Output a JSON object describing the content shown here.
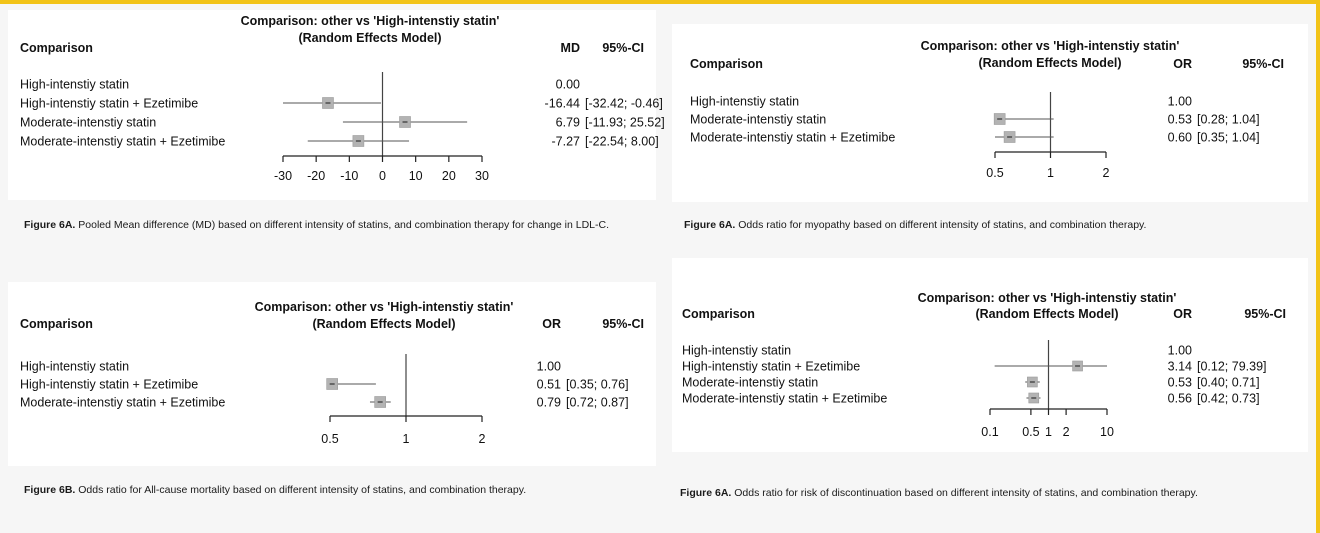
{
  "chart_data": [
    {
      "type": "forest",
      "title": "Comparison: other vs 'High-intenstiy statin'",
      "subtitle": "(Random Effects Model)",
      "label_header": "Comparison",
      "effect_header": "MD",
      "ci_header": "95%-CI",
      "scale": "linear",
      "xlim": [
        -30,
        30
      ],
      "ticks": [
        -30,
        -20,
        -10,
        0,
        10,
        20,
        30
      ],
      "tick_labels": [
        "-30",
        "-20",
        "-10",
        "0",
        "10",
        "20",
        "30"
      ],
      "reference": 0,
      "rows": [
        {
          "label": "High-intenstiy statin",
          "est": 0.0,
          "lo": null,
          "hi": null,
          "est_text": "0.00",
          "ci_text": ""
        },
        {
          "label": "High-intenstiy statin + Ezetimibe",
          "est": -16.44,
          "lo": -32.42,
          "hi": -0.46,
          "est_text": "-16.44",
          "ci_text": "[-32.42; -0.46]"
        },
        {
          "label": "Moderate-intenstiy statin",
          "est": 6.79,
          "lo": -11.93,
          "hi": 25.52,
          "est_text": "6.79",
          "ci_text": "[-11.93; 25.52]"
        },
        {
          "label": "Moderate-intenstiy statin + Ezetimibe",
          "est": -7.27,
          "lo": -22.54,
          "hi": 8.0,
          "est_text": "-7.27",
          "ci_text": "[-22.54;  8.00]"
        }
      ],
      "caption_label": "Figure 6A.",
      "caption_text": " Pooled Mean difference (MD) based on different intensity of statins, and combination therapy for change in LDL-C."
    },
    {
      "type": "forest",
      "title": "Comparison: other vs 'High-intenstiy statin'",
      "subtitle": "(Random Effects Model)",
      "label_header": "Comparison",
      "effect_header": "OR",
      "ci_header": "95%-CI",
      "scale": "log",
      "xlim": [
        0.5,
        2
      ],
      "ticks": [
        0.5,
        1,
        2
      ],
      "tick_labels": [
        "0.5",
        "1",
        "2"
      ],
      "reference": 1,
      "rows": [
        {
          "label": "High-intenstiy statin",
          "est": 1.0,
          "lo": null,
          "hi": null,
          "est_text": "1.00",
          "ci_text": ""
        },
        {
          "label": "Moderate-intenstiy statin",
          "est": 0.53,
          "lo": 0.28,
          "hi": 1.04,
          "est_text": "0.53",
          "ci_text": "[0.28; 1.04]"
        },
        {
          "label": "Moderate-intenstiy statin + Ezetimibe",
          "est": 0.6,
          "lo": 0.35,
          "hi": 1.04,
          "est_text": "0.60",
          "ci_text": "[0.35; 1.04]"
        }
      ],
      "caption_label": "Figure 6A.",
      "caption_text": " Odds ratio for myopathy based on different intensity of statins, and combination therapy."
    },
    {
      "type": "forest",
      "title": "Comparison: other vs 'High-intenstiy statin'",
      "subtitle": "(Random Effects Model)",
      "label_header": "Comparison",
      "effect_header": "OR",
      "ci_header": "95%-CI",
      "scale": "log",
      "xlim": [
        0.5,
        2
      ],
      "ticks": [
        0.5,
        1,
        2
      ],
      "tick_labels": [
        "0.5",
        "1",
        "2"
      ],
      "reference": 1,
      "rows": [
        {
          "label": "High-intenstiy statin",
          "est": 1.0,
          "lo": null,
          "hi": null,
          "est_text": "1.00",
          "ci_text": ""
        },
        {
          "label": "High-intenstiy statin + Ezetimibe",
          "est": 0.51,
          "lo": 0.35,
          "hi": 0.76,
          "est_text": "0.51",
          "ci_text": "[0.35; 0.76]"
        },
        {
          "label": "Moderate-intenstiy statin + Ezetimibe",
          "est": 0.79,
          "lo": 0.72,
          "hi": 0.87,
          "est_text": "0.79",
          "ci_text": "[0.72; 0.87]"
        }
      ],
      "caption_label": "Figure 6B.",
      "caption_text": " Odds ratio for All-cause mortality based on different intensity of statins, and combination therapy."
    },
    {
      "type": "forest",
      "title": "Comparison: other vs 'High-intenstiy statin'",
      "subtitle": "(Random Effects Model)",
      "label_header": "Comparison",
      "effect_header": "OR",
      "ci_header": "95%-CI",
      "scale": "log",
      "xlim": [
        0.1,
        10
      ],
      "ticks": [
        0.1,
        0.5,
        1,
        2,
        10
      ],
      "tick_labels": [
        "0.1",
        "0.5",
        "1",
        "2",
        "10"
      ],
      "reference": 1,
      "rows": [
        {
          "label": "High-intenstiy statin",
          "est": 1.0,
          "lo": null,
          "hi": null,
          "est_text": "1.00",
          "ci_text": ""
        },
        {
          "label": "High-intenstiy statin + Ezetimibe",
          "est": 3.14,
          "lo": 0.12,
          "hi": 79.39,
          "est_text": "3.14",
          "ci_text": "[0.12; 79.39]"
        },
        {
          "label": "Moderate-intenstiy statin",
          "est": 0.53,
          "lo": 0.4,
          "hi": 0.71,
          "est_text": "0.53",
          "ci_text": "[0.40;  0.71]"
        },
        {
          "label": "Moderate-intenstiy statin + Ezetimibe",
          "est": 0.56,
          "lo": 0.42,
          "hi": 0.73,
          "est_text": "0.56",
          "ci_text": "[0.42;  0.73]"
        }
      ],
      "caption_label": "Figure 6A.",
      "caption_text": " Odds ratio for risk of discontinuation based on different intensity of statins, and combination therapy."
    }
  ]
}
